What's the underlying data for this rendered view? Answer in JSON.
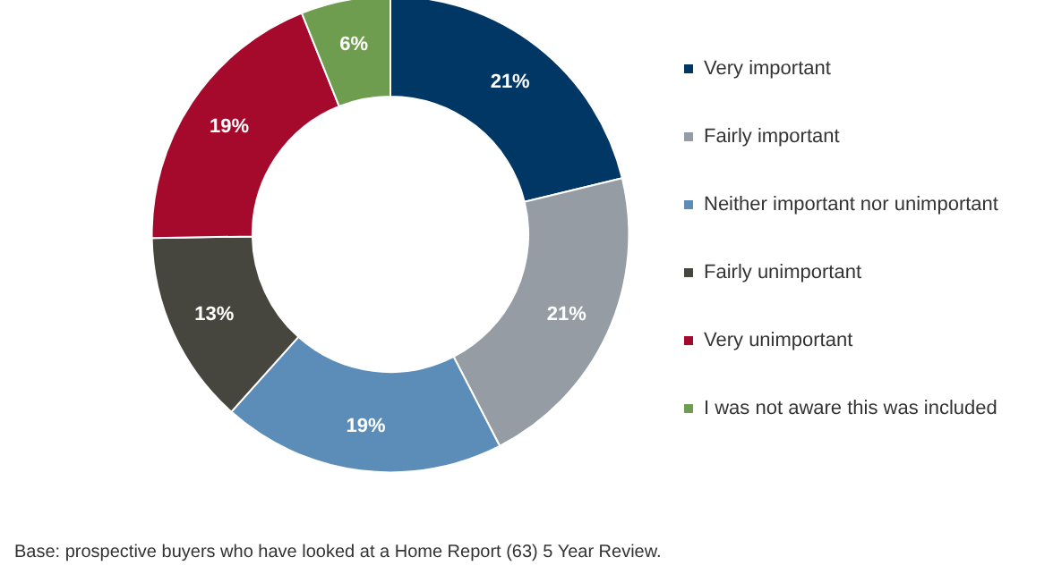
{
  "chart_data": {
    "type": "donut",
    "categories": [
      "Very important",
      "Fairly important",
      "Neither important nor unimportant",
      "Fairly unimportant",
      "Very unimportant",
      "I was not aware this was included"
    ],
    "values": [
      21,
      21,
      19,
      13,
      19,
      6
    ],
    "colors": [
      "#003764",
      "#969ca3",
      "#5b8db8",
      "#47463e",
      "#a50a2c",
      "#6f9d4f"
    ],
    "value_labels": [
      "21%",
      "21%",
      "19%",
      "13%",
      "19%",
      "6%"
    ],
    "legend": "right",
    "annotations": [
      "Base: prospective buyers who have looked at a Home Report (63) 5 Year Review."
    ]
  }
}
